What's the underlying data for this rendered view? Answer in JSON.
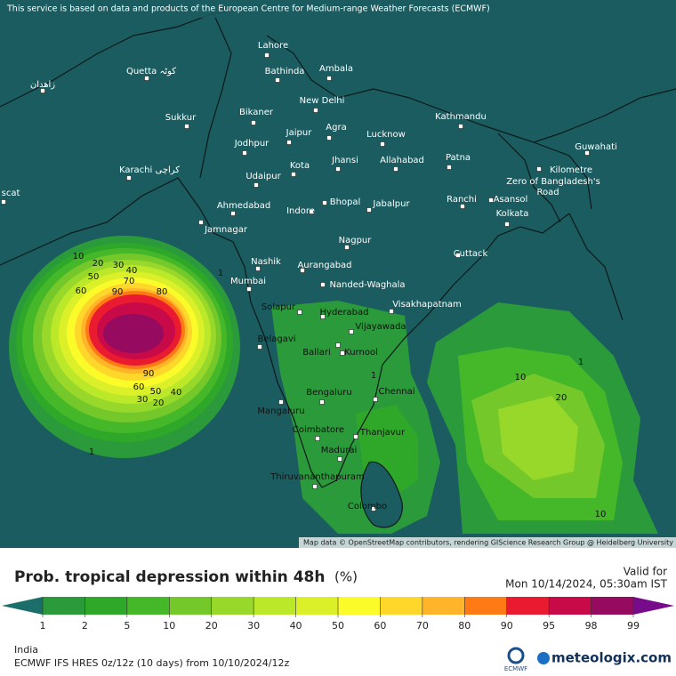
{
  "banner": "This service is based on data and products of the European Centre for Medium-range Weather Forecasts (ECMWF)",
  "attribution": "Map data © OpenStreetMap contributors, rendering GIScience Research Group @ Heidelberg University",
  "cities": [
    "Lahore",
    "Quetta کوٹہ",
    "Bathinda",
    "Ambala",
    "زاهدان",
    "New Delhi",
    "Sukkur",
    "Bikaner",
    "Jaipur",
    "Agra",
    "Lucknow",
    "Kathmandu",
    "Guwahati",
    "Jodhpur",
    "Jhansi",
    "Allahabad",
    "Patna",
    "Kota",
    "Karachi کراچی",
    "Udaipur",
    "Kilometre",
    "Zero of Bangladesh's",
    "Road",
    "Ahmedabad",
    "Indore",
    "Bhopal",
    "Jabalpur",
    "Ranchi",
    "Asansol",
    "Kolkata",
    "scat",
    "Jamnagar",
    "Nagpur",
    "Cuttack",
    "Nashik",
    "Aurangabad",
    "Mumbai",
    "Nanded-Waghala",
    "Solapur",
    "Hyderabad",
    "Visakhapatnam",
    "Vijayawada",
    "Belagavi",
    "Ballari",
    "Kurnool",
    "Bengaluru",
    "Chennai",
    "Mangaluru",
    "Coimbatore",
    "Thanjavur",
    "Madurai",
    "Thiruvananthapuram",
    "Colombo"
  ],
  "contour_labels": [
    "10",
    "20",
    "30",
    "40",
    "50",
    "70",
    "60",
    "90",
    "80",
    "90",
    "60",
    "50",
    "40",
    "30",
    "20",
    "1",
    "1",
    "1",
    "10",
    "20",
    "1",
    "10"
  ],
  "title": "Prob. tropical depression within 48h",
  "unit": "(%)",
  "valid_label": "Valid for",
  "valid_time": "Mon 10/14/2024, 05:30am IST",
  "legend": {
    "levels": [
      1,
      2,
      5,
      10,
      20,
      30,
      40,
      50,
      60,
      70,
      80,
      90,
      95,
      98,
      99
    ],
    "colors": [
      "#2a9a3a",
      "#2fa82a",
      "#45b82a",
      "#74c82a",
      "#98d82a",
      "#bce82a",
      "#dcf02a",
      "#fbfb2a",
      "#ffd62a",
      "#ffb42a",
      "#ff7a14",
      "#ea1a30",
      "#c80a48",
      "#960a60"
    ],
    "low_color": "#1b6e6a",
    "high_color": "#780a8c"
  },
  "region": "India",
  "model": "ECMWF IFS HRES 0z/12z (10 days) from 10/10/2024/12z",
  "logo_small": "ECMWF",
  "logo": "meteologix.com"
}
